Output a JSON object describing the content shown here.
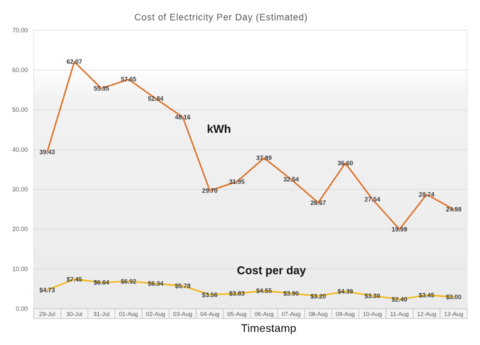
{
  "title": "Cost of Electricity Per Day (Estimated)",
  "x_axis_title": "Timestamp",
  "annotations": {
    "kwh_label": "kWh",
    "cost_label": "Cost per day"
  },
  "colors": {
    "kwh_line": "#DF7733",
    "cost_line": "#EFB91F",
    "data_label": "#3d3d3d",
    "axis_text": "#595959",
    "gridline": "#dcdcdc",
    "axis_line": "#c9c9c9",
    "cell_fill": "#f4f4f4",
    "plot_fill_top": "#ffffff",
    "plot_fill_bottom": "#ebebeb"
  },
  "chart_data": {
    "type": "line",
    "title": "Cost of Electricity Per Day (Estimated)",
    "xlabel": "Timestamp",
    "ylabel": "",
    "ylim": [
      0,
      70
    ],
    "grid": true,
    "legend_position": "none",
    "y_tick_labels": [
      "70.00",
      "60.00",
      "50.00",
      "40.00",
      "30.00",
      "20.00",
      "10.00",
      "0.00"
    ],
    "categories": [
      "29-Jul",
      "30-Jul",
      "31-Jul",
      "01-Aug",
      "02-Aug",
      "03-Aug",
      "04-Aug",
      "05-Aug",
      "06-Aug",
      "07-Aug",
      "08-Aug",
      "09-Aug",
      "10-Aug",
      "11-Aug",
      "12-Aug",
      "13-Aug"
    ],
    "series": [
      {
        "name": "kWh",
        "values": [
          39.43,
          62.07,
          55.35,
          57.65,
          52.84,
          48.16,
          29.7,
          31.95,
          37.89,
          32.54,
          26.67,
          36.6,
          27.54,
          19.99,
          28.74,
          24.98
        ],
        "labels": [
          "39.43",
          "62.07",
          "55.35",
          "57.65",
          "52.84",
          "48.16",
          "29.70",
          "31.95",
          "37.89",
          "32.54",
          "26.67",
          "36.60",
          "27.54",
          "19.99",
          "28.74",
          "24.98"
        ]
      },
      {
        "name": "Cost per day",
        "values": [
          4.73,
          7.45,
          6.64,
          6.92,
          6.34,
          5.78,
          3.56,
          3.83,
          4.55,
          3.9,
          3.2,
          4.39,
          3.3,
          2.4,
          3.45,
          3.0
        ],
        "labels": [
          "$4.73",
          "$7.45",
          "$6.64",
          "$6.92",
          "$6.34",
          "$5.78",
          "$3.56",
          "$3.83",
          "$4.55",
          "$3.90",
          "$3.20",
          "$4.39",
          "$3.30",
          "$2.40",
          "$3.45",
          "$3.00"
        ]
      }
    ]
  }
}
